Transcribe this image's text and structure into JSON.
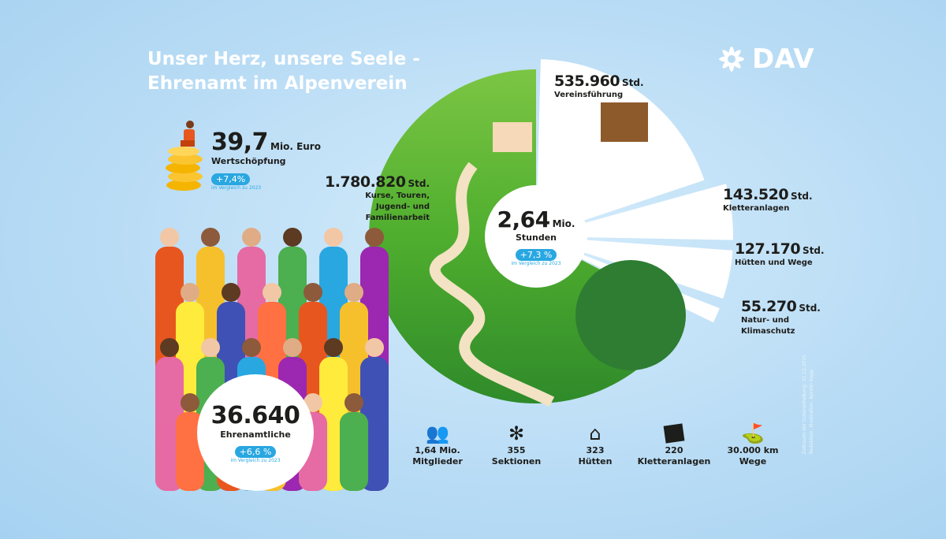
{
  "title": {
    "line1": "Unser Herz, unsere Seele -",
    "line2": "Ehrenamt im Alpenverein"
  },
  "logo": {
    "text": "DAV"
  },
  "wertschoepfung": {
    "value": "39,7",
    "unit": "Mio. Euro",
    "label": "Wertschöpfung",
    "change": "+7,4%",
    "compare": "im Vergleich zu 2023"
  },
  "stunden": {
    "value": "2,64",
    "unit": "Mio.",
    "label": "Stunden",
    "change": "+7,3 %",
    "compare": "im Vergleich zu 2023"
  },
  "ehrenamtliche": {
    "value": "36.640",
    "label": "Ehrenamtliche",
    "change": "+6,6 %",
    "compare": "im Vergleich zu 2023"
  },
  "chart_data": {
    "type": "pie",
    "unit": "Std.",
    "slices": [
      {
        "value_label": "535.960",
        "label": "Vereinsführung",
        "value": 535960,
        "color": "#ffffff"
      },
      {
        "value_label": "143.520",
        "label": "Kletteranlagen",
        "value": 143520,
        "color": "#ffffff"
      },
      {
        "value_label": "127.170",
        "label": "Hütten und Wege",
        "value": 127170,
        "color": "#ffffff"
      },
      {
        "value_label": "55.270",
        "label": "Natur- und Klimaschutz",
        "value": 55270,
        "color": "#ffffff"
      },
      {
        "value_label": "1.780.820",
        "label": "Kurse, Touren, Jugend- und Familienarbeit",
        "value": 1780820,
        "color": "#5cb531"
      }
    ]
  },
  "stats": [
    {
      "icon": "people-icon",
      "value": "1,64 Mio.",
      "label": "Mitglieder"
    },
    {
      "icon": "edelweiss-icon",
      "value": "355",
      "label": "Sektionen"
    },
    {
      "icon": "hut-icon",
      "value": "323",
      "label": "Hütten"
    },
    {
      "icon": "climbing-wall-icon",
      "value": "220",
      "label": "Kletteranlagen"
    },
    {
      "icon": "signpost-icon",
      "value": "30.000 km",
      "label": "Wege"
    }
  ],
  "footnote": {
    "line1": "Zeitraum der Datenerhebung: 31.12.2025",
    "line2": "Redaktion; Illustration: Kerstin Kopp"
  }
}
